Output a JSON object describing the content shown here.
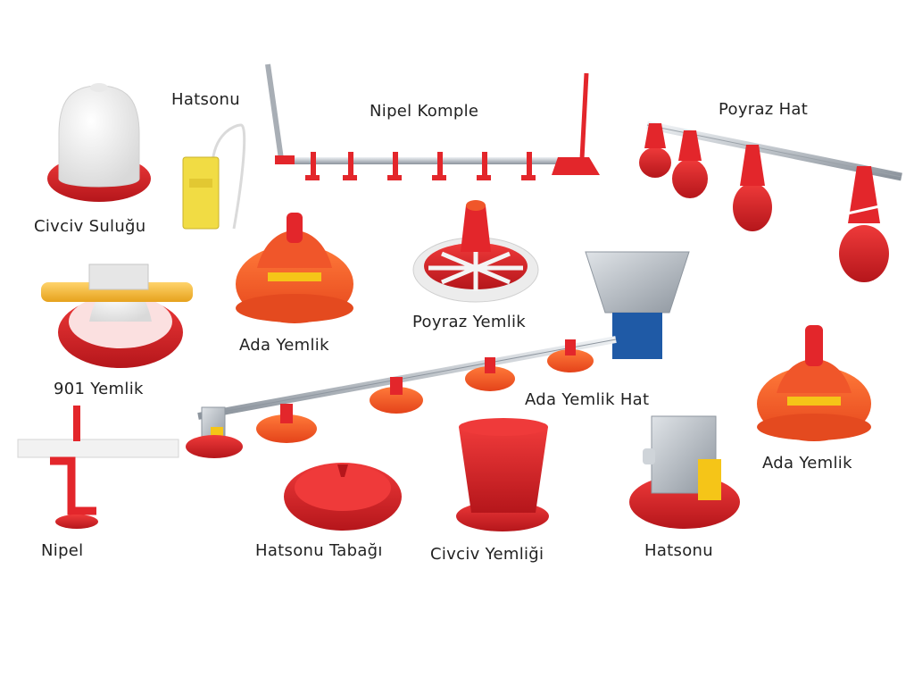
{
  "colors": {
    "red": "#e3262b",
    "dark_red": "#b5161b",
    "orange": "#f2571e",
    "yellow": "#f5c518",
    "white_plastic": "#f4f4f4",
    "metal": "#b9bfc6",
    "text": "#222222"
  },
  "labels": {
    "civciv_sulugu": "Civciv Suluğu",
    "hatsonu_top": "Hatsonu",
    "nipel_komple": "Nipel Komple",
    "poyraz_hat": "Poyraz Hat",
    "ada_yemlik_left": "Ada Yemlik",
    "poyraz_yemlik": "Poyraz Yemlik",
    "yemlik_901": "901 Yemlik",
    "ada_yemlik_hat": "Ada Yemlik Hat",
    "ada_yemlik_right": "Ada Yemlik",
    "nipel": "Nipel",
    "hatsonu_tabagi": "Hatsonu Tabağı",
    "civciv_yemligi": "Civciv Yemliği",
    "hatsonu_bottom": "Hatsonu"
  }
}
